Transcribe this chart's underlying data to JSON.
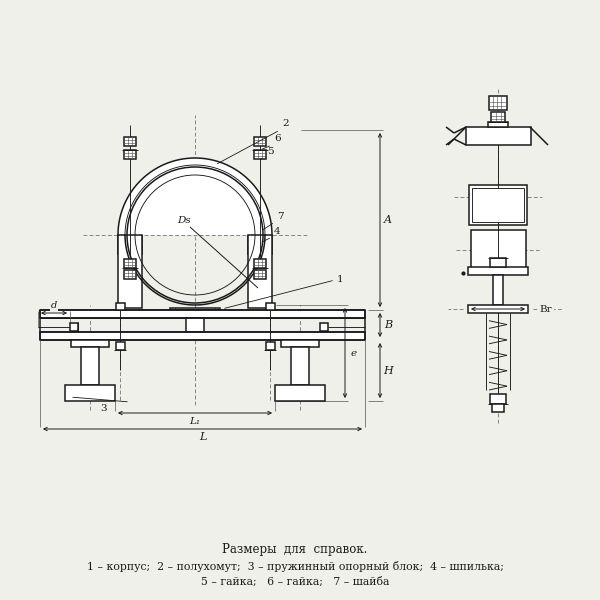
{
  "bg_color": "#f0f0eb",
  "line_color": "#1a1a1a",
  "lw": 1.1,
  "tlw": 0.65,
  "dlw": 0.55,
  "title_text": "Размеры  для  справок.",
  "legend_line1": "1 – корпус;  2 – полухомут;  3 – пружинный опорный блок;  4 – шпилька;",
  "legend_line2": "5 – гайка;   6 – гайка;   7 – шайба",
  "title_fontsize": 8.5,
  "legend_fontsize": 7.8
}
